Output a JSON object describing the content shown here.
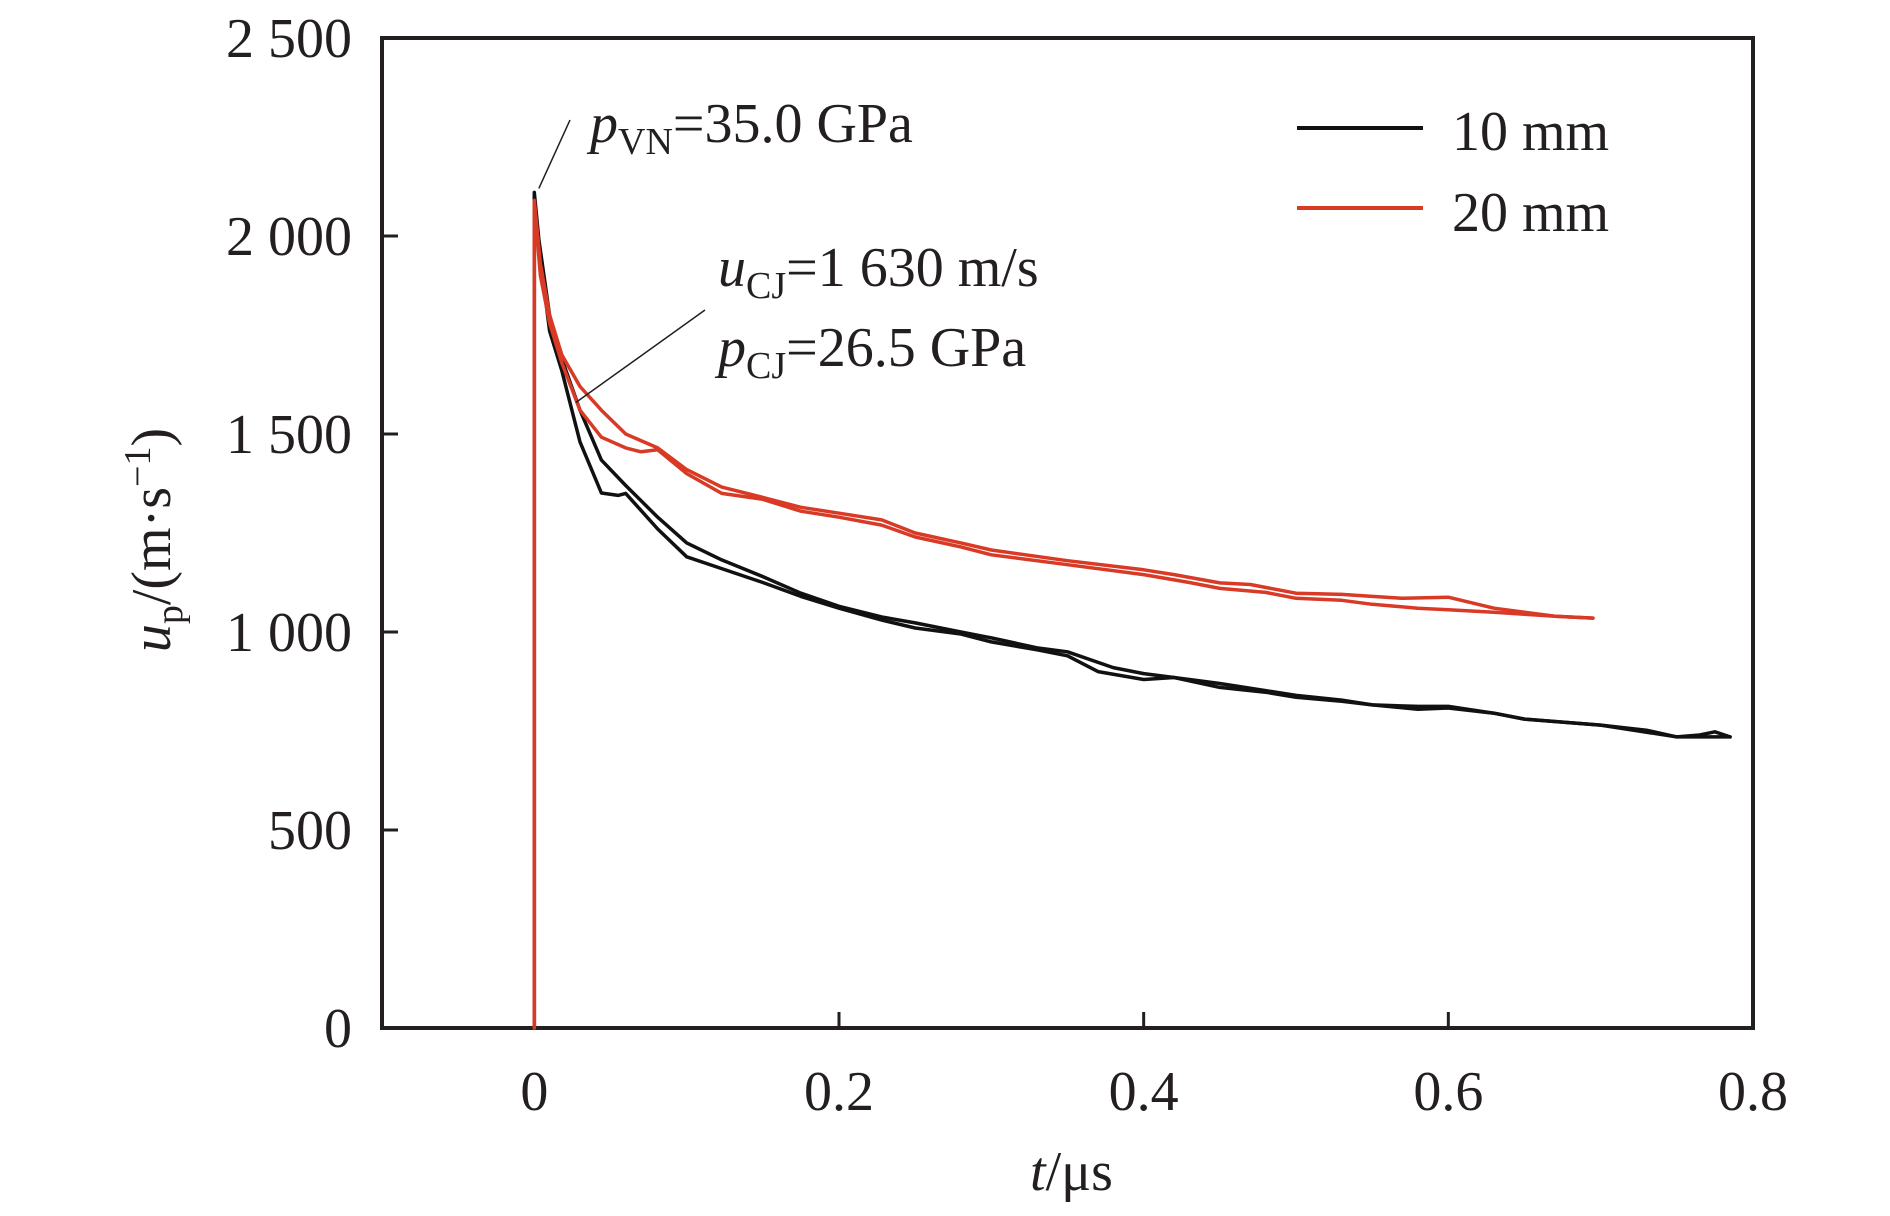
{
  "chart_data": {
    "type": "line",
    "title": "",
    "xlabel": {
      "var": "t",
      "unit": "/μs"
    },
    "ylabel": {
      "var": "u",
      "sub": "p",
      "unit": "/(m·s",
      "sup": "−1",
      "close": ")"
    },
    "xlim": [
      -0.1,
      0.8
    ],
    "ylim": [
      0,
      2500
    ],
    "xticks": [
      0,
      0.2,
      0.4,
      0.6,
      0.8
    ],
    "xtick_labels": [
      "0",
      "0.2",
      "0.4",
      "0.6",
      "0.8"
    ],
    "yticks": [
      0,
      500,
      1000,
      1500,
      2000,
      2500
    ],
    "ytick_labels": [
      "0",
      "500",
      "1 000",
      "1 500",
      "2 000",
      "2 500"
    ],
    "grid": false,
    "legend_position": "top-right",
    "series": [
      {
        "name": "10 mm",
        "color": "#111111",
        "traces": [
          [
            [
              0,
              0
            ],
            [
              0,
              2110
            ],
            [
              0.003,
              1990
            ],
            [
              0.01,
              1800
            ],
            [
              0.018,
              1690
            ],
            [
              0.03,
              1560
            ],
            [
              0.044,
              1434
            ],
            [
              0.06,
              1370
            ],
            [
              0.081,
              1290
            ],
            [
              0.1,
              1225
            ],
            [
              0.123,
              1182
            ],
            [
              0.15,
              1140
            ],
            [
              0.175,
              1098
            ],
            [
              0.2,
              1065
            ],
            [
              0.228,
              1038
            ],
            [
              0.25,
              1023
            ],
            [
              0.28,
              1000
            ],
            [
              0.3,
              985
            ],
            [
              0.33,
              960
            ],
            [
              0.35,
              950
            ],
            [
              0.38,
              910
            ],
            [
              0.4,
              895
            ],
            [
              0.43,
              880
            ],
            [
              0.45,
              870
            ],
            [
              0.48,
              852
            ],
            [
              0.5,
              840
            ],
            [
              0.53,
              828
            ],
            [
              0.55,
              816
            ],
            [
              0.58,
              812
            ],
            [
              0.6,
              812
            ],
            [
              0.63,
              795
            ],
            [
              0.65,
              780
            ],
            [
              0.7,
              765
            ],
            [
              0.73,
              752
            ],
            [
              0.75,
              735
            ],
            [
              0.765,
              740
            ],
            [
              0.775,
              748
            ],
            [
              0.785,
              735
            ]
          ],
          [
            [
              0,
              0
            ],
            [
              0,
              2100
            ],
            [
              0.003,
              1970
            ],
            [
              0.01,
              1760
            ],
            [
              0.018,
              1660
            ],
            [
              0.03,
              1480
            ],
            [
              0.044,
              1351
            ],
            [
              0.055,
              1345
            ],
            [
              0.06,
              1350
            ],
            [
              0.081,
              1260
            ],
            [
              0.1,
              1190
            ],
            [
              0.123,
              1160
            ],
            [
              0.15,
              1125
            ],
            [
              0.175,
              1090
            ],
            [
              0.2,
              1060
            ],
            [
              0.228,
              1030
            ],
            [
              0.25,
              1010
            ],
            [
              0.28,
              995
            ],
            [
              0.3,
              975
            ],
            [
              0.33,
              955
            ],
            [
              0.35,
              940
            ],
            [
              0.37,
              900
            ],
            [
              0.4,
              880
            ],
            [
              0.42,
              885
            ],
            [
              0.45,
              860
            ],
            [
              0.48,
              848
            ],
            [
              0.5,
              835
            ],
            [
              0.53,
              825
            ],
            [
              0.55,
              816
            ],
            [
              0.58,
              805
            ],
            [
              0.6,
              808
            ],
            [
              0.63,
              795
            ],
            [
              0.65,
              780
            ],
            [
              0.7,
              765
            ],
            [
              0.75,
              735
            ],
            [
              0.785,
              735
            ]
          ]
        ]
      },
      {
        "name": "20 mm",
        "color": "#d93a26",
        "traces": [
          [
            [
              0,
              0
            ],
            [
              0,
              2090
            ],
            [
              0.004,
              1930
            ],
            [
              0.01,
              1800
            ],
            [
              0.018,
              1700
            ],
            [
              0.03,
              1620
            ],
            [
              0.044,
              1560
            ],
            [
              0.06,
              1500
            ],
            [
              0.081,
              1465
            ],
            [
              0.1,
              1410
            ],
            [
              0.123,
              1366
            ],
            [
              0.15,
              1340
            ],
            [
              0.175,
              1315
            ],
            [
              0.2,
              1300
            ],
            [
              0.228,
              1283
            ],
            [
              0.25,
              1250
            ],
            [
              0.28,
              1225
            ],
            [
              0.3,
              1207
            ],
            [
              0.35,
              1180
            ],
            [
              0.4,
              1157
            ],
            [
              0.42,
              1145
            ],
            [
              0.45,
              1124
            ],
            [
              0.47,
              1120
            ],
            [
              0.5,
              1098
            ],
            [
              0.53,
              1095
            ],
            [
              0.55,
              1090
            ],
            [
              0.57,
              1085
            ],
            [
              0.6,
              1088
            ],
            [
              0.63,
              1060
            ],
            [
              0.65,
              1050
            ],
            [
              0.67,
              1040
            ],
            [
              0.695,
              1035
            ]
          ],
          [
            [
              0,
              0
            ],
            [
              0,
              2080
            ],
            [
              0.004,
              1900
            ],
            [
              0.01,
              1780
            ],
            [
              0.018,
              1680
            ],
            [
              0.03,
              1560
            ],
            [
              0.044,
              1492
            ],
            [
              0.06,
              1465
            ],
            [
              0.07,
              1455
            ],
            [
              0.081,
              1460
            ],
            [
              0.1,
              1400
            ],
            [
              0.123,
              1350
            ],
            [
              0.15,
              1335
            ],
            [
              0.175,
              1305
            ],
            [
              0.2,
              1290
            ],
            [
              0.228,
              1270
            ],
            [
              0.25,
              1240
            ],
            [
              0.28,
              1215
            ],
            [
              0.3,
              1195
            ],
            [
              0.35,
              1170
            ],
            [
              0.4,
              1145
            ],
            [
              0.43,
              1125
            ],
            [
              0.45,
              1110
            ],
            [
              0.48,
              1100
            ],
            [
              0.5,
              1085
            ],
            [
              0.53,
              1080
            ],
            [
              0.55,
              1070
            ],
            [
              0.58,
              1060
            ],
            [
              0.6,
              1056
            ],
            [
              0.63,
              1050
            ],
            [
              0.65,
              1045
            ],
            [
              0.67,
              1040
            ],
            [
              0.695,
              1035
            ]
          ]
        ]
      }
    ],
    "annotations": [
      {
        "id": "vn",
        "var": "p",
        "sub": "VN",
        "text": "=35.0 GPa",
        "point": [
          0.001,
          2110
        ]
      },
      {
        "id": "ucj",
        "var": "u",
        "sub": "CJ",
        "text": "=1 630 m/s"
      },
      {
        "id": "pcj",
        "var": "p",
        "sub": "CJ",
        "text": "=26.5 GPa",
        "point": [
          0.022,
          1630
        ]
      }
    ]
  }
}
